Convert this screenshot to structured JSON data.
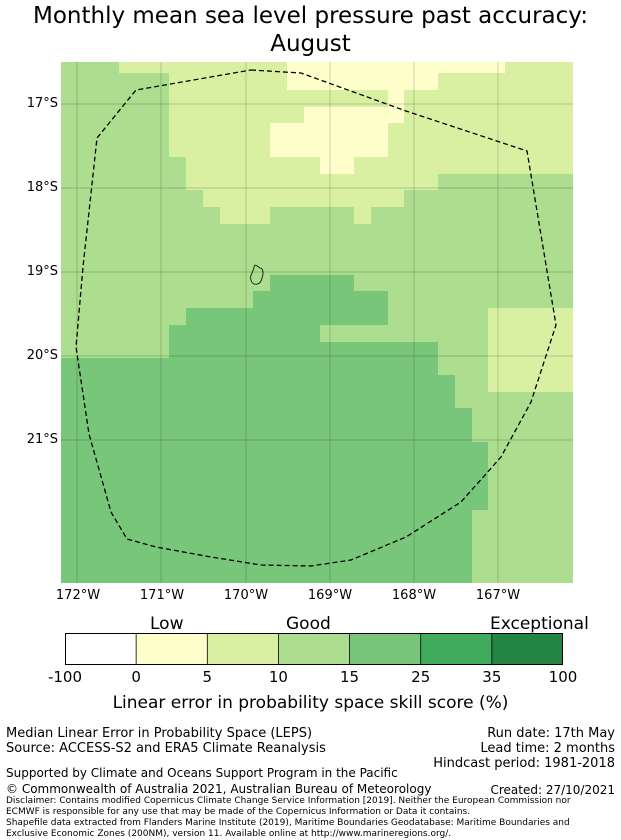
{
  "title_line1": "Monthly mean sea level pressure past accuracy:",
  "title_line2": "August",
  "map": {
    "lat_labels": [
      "17°S",
      "18°S",
      "19°S",
      "20°S",
      "21°S"
    ],
    "lon_labels": [
      "172°W",
      "171°W",
      "170°W",
      "169°W",
      "168°W",
      "167°W"
    ],
    "extent": {
      "lon_min": -172.2,
      "lon_max": -166.1,
      "lat_max": -16.5,
      "lat_min": -22.7
    }
  },
  "colorbar": {
    "category_labels": [
      "Low",
      "Good",
      "Exceptional"
    ],
    "ticks": [
      "-100",
      "0",
      "5",
      "10",
      "15",
      "25",
      "35",
      "100"
    ],
    "colors": [
      "#ffffff",
      "#ffffcc",
      "#d9f0a3",
      "#addd8e",
      "#78c679",
      "#41ab5d",
      "#238443"
    ],
    "label": "Linear error in probability space skill score (%)"
  },
  "footer": {
    "line1": "Median Linear Error in Probability Space (LEPS)",
    "line2": "Source: ACCESS-S2 and ERA5 Climate Reanalysis",
    "run_date": "Run date: 17th May",
    "lead_time": "Lead time: 2 months",
    "hindcast": "Hindcast period: 1981-2018",
    "support": "Supported by Climate and Oceans Support Program in the Pacific",
    "copyright": "© Commonwealth of Australia 2021, Australian Bureau of Meteorology",
    "created": "Created: 27/10/2021",
    "disclaimer1": "Disclaimer: Contains modified Copernicus Climate Change Service Information [2019]. Neither the European Commission nor",
    "disclaimer2": "ECMWF is responsible for any use that may be made of the Copernicus Information or Data it contains.",
    "shapefile1": "Shapefile data extracted from Flanders Marine Institute (2019), Maritime Boundaries Geodatabase: Maritime Boundaries and",
    "shapefile2": "Exclusive Economic Zones (200NM), version 11. Available online at http://www.marineregions.org/."
  }
}
